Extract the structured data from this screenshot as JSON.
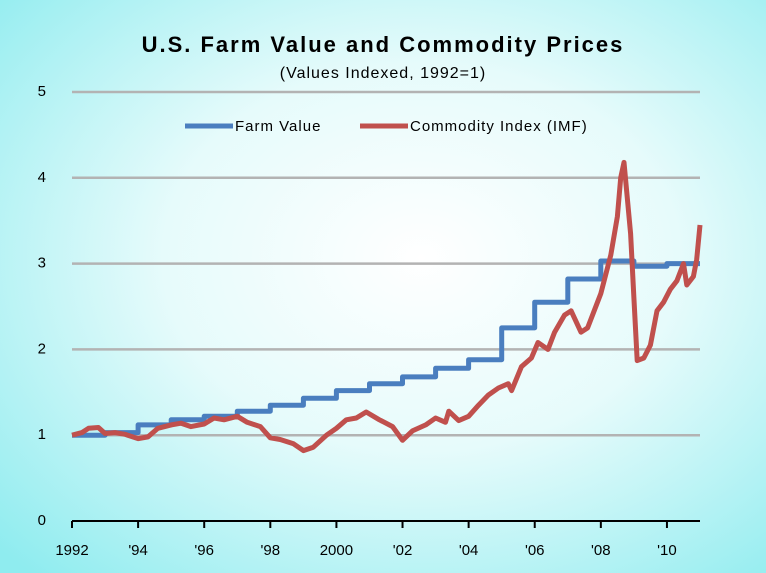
{
  "chart_data": {
    "type": "line",
    "title": "U.S. Farm Value and Commodity Prices",
    "subtitle": "(Values Indexed, 1992=1)",
    "xlim": [
      1992,
      2011
    ],
    "xticks": [
      {
        "value": 1992,
        "label": "1992"
      },
      {
        "value": 1994,
        "label": "'94"
      },
      {
        "value": 1996,
        "label": "'96"
      },
      {
        "value": 1998,
        "label": "'98"
      },
      {
        "value": 2000,
        "label": "2000"
      },
      {
        "value": 2002,
        "label": "'02"
      },
      {
        "value": 2004,
        "label": "'04"
      },
      {
        "value": 2006,
        "label": "'06"
      },
      {
        "value": 2008,
        "label": "'08"
      },
      {
        "value": 2010,
        "label": "'10"
      }
    ],
    "ylim": [
      0,
      5
    ],
    "yticks": [
      0,
      1,
      2,
      3,
      4,
      5
    ],
    "grid": true,
    "legend": "top",
    "series": [
      {
        "name": "Farm Value",
        "color": "#4a7ebf",
        "x": [
          1992,
          1993,
          1993,
          1994,
          1994,
          1995,
          1995,
          1996,
          1996,
          1997,
          1997,
          1998,
          1998,
          1999,
          1999,
          2000,
          2000,
          2001,
          2001,
          2002,
          2002,
          2003,
          2003,
          2004,
          2004,
          2005,
          2005,
          2006,
          2006,
          2007,
          2007,
          2008,
          2008,
          2009,
          2009,
          2010,
          2010,
          2011
        ],
        "values": [
          1.0,
          1.0,
          1.03,
          1.03,
          1.12,
          1.12,
          1.18,
          1.18,
          1.22,
          1.22,
          1.28,
          1.28,
          1.35,
          1.35,
          1.43,
          1.43,
          1.52,
          1.52,
          1.6,
          1.6,
          1.68,
          1.68,
          1.78,
          1.78,
          1.88,
          1.88,
          2.25,
          2.25,
          2.55,
          2.55,
          2.82,
          2.82,
          3.03,
          3.03,
          2.97,
          2.97,
          3.0,
          3.0
        ]
      },
      {
        "name": "Commodity Index (IMF)",
        "color": "#c0504d",
        "x": [
          1992.0,
          1992.3,
          1992.5,
          1992.8,
          1993.0,
          1993.3,
          1993.6,
          1994.0,
          1994.3,
          1994.6,
          1995.0,
          1995.3,
          1995.6,
          1996.0,
          1996.3,
          1996.6,
          1997.0,
          1997.3,
          1997.7,
          1998.0,
          1998.3,
          1998.7,
          1999.0,
          1999.3,
          1999.7,
          2000.0,
          2000.3,
          2000.6,
          2000.9,
          2001.3,
          2001.7,
          2002.0,
          2002.3,
          2002.7,
          2003.0,
          2003.3,
          2003.4,
          2003.7,
          2004.0,
          2004.3,
          2004.6,
          2004.9,
          2005.2,
          2005.3,
          2005.6,
          2005.9,
          2006.1,
          2006.4,
          2006.6,
          2006.9,
          2007.1,
          2007.4,
          2007.6,
          2007.9,
          2008.0,
          2008.3,
          2008.5,
          2008.6,
          2008.7,
          2008.9,
          2009.0,
          2009.1,
          2009.3,
          2009.5,
          2009.7,
          2009.9,
          2010.1,
          2010.3,
          2010.5,
          2010.6,
          2010.8,
          2010.9,
          2011.0
        ],
        "values": [
          1.0,
          1.03,
          1.08,
          1.09,
          1.02,
          1.03,
          1.01,
          0.96,
          0.98,
          1.08,
          1.12,
          1.14,
          1.1,
          1.13,
          1.2,
          1.18,
          1.22,
          1.15,
          1.1,
          0.97,
          0.95,
          0.9,
          0.82,
          0.86,
          1.0,
          1.08,
          1.18,
          1.2,
          1.27,
          1.18,
          1.1,
          0.94,
          1.05,
          1.12,
          1.2,
          1.15,
          1.28,
          1.17,
          1.22,
          1.35,
          1.47,
          1.55,
          1.6,
          1.52,
          1.8,
          1.9,
          2.08,
          2.0,
          2.2,
          2.4,
          2.45,
          2.2,
          2.25,
          2.55,
          2.65,
          3.1,
          3.55,
          4.0,
          4.18,
          3.35,
          2.6,
          1.87,
          1.9,
          2.05,
          2.45,
          2.55,
          2.7,
          2.8,
          3.0,
          2.75,
          2.85,
          3.05,
          3.45
        ]
      }
    ]
  }
}
